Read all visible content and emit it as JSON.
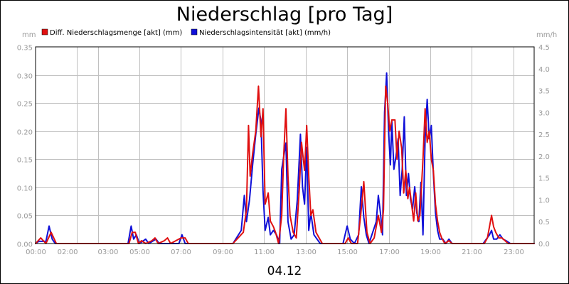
{
  "chart_data": {
    "type": "line",
    "title": "Niederschlag [pro Tag]",
    "date_label": "04.12",
    "left_unit": "mm",
    "right_unit": "mm/h",
    "left_axis": {
      "min": 0,
      "max": 0.35,
      "ticks": [
        "0.00",
        "0.05",
        "0.10",
        "0.15",
        "0.20",
        "0.25",
        "0.30",
        "0.35"
      ]
    },
    "right_axis": {
      "min": 0,
      "max": 4.5,
      "ticks": [
        "0.0",
        "0.5",
        "1.0",
        "1.5",
        "2.0",
        "2.5",
        "3.0",
        "3.5",
        "4.0",
        "4.5"
      ]
    },
    "x_axis": {
      "min_hour": 0,
      "max_hour": 24,
      "tick_hours": [
        0,
        2,
        3,
        5,
        7,
        9,
        11,
        13,
        15,
        17,
        19,
        21,
        23
      ],
      "tick_labels": [
        "00:00",
        "02:00",
        "03:00",
        "05:00",
        "07:00",
        "09:00",
        "11:00",
        "13:00",
        "15:00",
        "17:00",
        "19:00",
        "21:00",
        "23:00"
      ]
    },
    "grid": true,
    "legend_position": "top-left",
    "series": [
      {
        "name": "Diff. Niederschlagsmenge [akt] (mm)",
        "axis": "left",
        "color": "#e01010",
        "points": [
          [
            0,
            0
          ],
          [
            0.25,
            0.01
          ],
          [
            0.5,
            0
          ],
          [
            0.75,
            0.02
          ],
          [
            1.0,
            0
          ],
          [
            1.5,
            0
          ],
          [
            4.5,
            0
          ],
          [
            4.65,
            0.02
          ],
          [
            4.8,
            0.02
          ],
          [
            4.95,
            0
          ],
          [
            5.1,
            0.005
          ],
          [
            5.3,
            0
          ],
          [
            5.6,
            0.005
          ],
          [
            5.75,
            0.01
          ],
          [
            5.9,
            0
          ],
          [
            6.2,
            0.005
          ],
          [
            6.35,
            0.01
          ],
          [
            6.5,
            0
          ],
          [
            7.0,
            0.01
          ],
          [
            7.2,
            0.01
          ],
          [
            7.35,
            0
          ],
          [
            9.5,
            0
          ],
          [
            10.0,
            0.02
          ],
          [
            10.15,
            0.06
          ],
          [
            10.25,
            0.21
          ],
          [
            10.33,
            0.12
          ],
          [
            10.45,
            0.16
          ],
          [
            10.6,
            0.2
          ],
          [
            10.73,
            0.28
          ],
          [
            10.85,
            0.19
          ],
          [
            10.95,
            0.24
          ],
          [
            11.05,
            0.07
          ],
          [
            11.2,
            0.09
          ],
          [
            11.3,
            0.04
          ],
          [
            11.45,
            0.03
          ],
          [
            11.55,
            0.02
          ],
          [
            11.7,
            0
          ],
          [
            11.85,
            0.05
          ],
          [
            11.95,
            0.16
          ],
          [
            12.05,
            0.24
          ],
          [
            12.15,
            0.12
          ],
          [
            12.25,
            0.05
          ],
          [
            12.4,
            0.02
          ],
          [
            12.55,
            0.01
          ],
          [
            12.7,
            0.1
          ],
          [
            12.8,
            0.18
          ],
          [
            12.95,
            0.13
          ],
          [
            13.05,
            0.21
          ],
          [
            13.15,
            0.12
          ],
          [
            13.25,
            0.05
          ],
          [
            13.35,
            0.06
          ],
          [
            13.5,
            0.02
          ],
          [
            13.65,
            0.01
          ],
          [
            13.8,
            0
          ],
          [
            14.9,
            0
          ],
          [
            15.05,
            0.01
          ],
          [
            15.2,
            0
          ],
          [
            15.5,
            0
          ],
          [
            15.65,
            0.05
          ],
          [
            15.8,
            0.11
          ],
          [
            15.95,
            0.02
          ],
          [
            16.1,
            0
          ],
          [
            16.3,
            0.01
          ],
          [
            16.5,
            0.05
          ],
          [
            16.65,
            0.02
          ],
          [
            16.75,
            0.06
          ],
          [
            16.85,
            0.28
          ],
          [
            16.95,
            0.25
          ],
          [
            17.05,
            0.2
          ],
          [
            17.15,
            0.22
          ],
          [
            17.3,
            0.22
          ],
          [
            17.4,
            0.15
          ],
          [
            17.5,
            0.2
          ],
          [
            17.62,
            0.17
          ],
          [
            17.72,
            0.09
          ],
          [
            17.82,
            0.13
          ],
          [
            17.92,
            0.08
          ],
          [
            18.0,
            0.1
          ],
          [
            18.1,
            0.07
          ],
          [
            18.2,
            0.04
          ],
          [
            18.3,
            0.09
          ],
          [
            18.4,
            0.04
          ],
          [
            18.5,
            0.05
          ],
          [
            18.65,
            0.15
          ],
          [
            18.75,
            0.24
          ],
          [
            18.85,
            0.18
          ],
          [
            18.95,
            0.2
          ],
          [
            19.05,
            0.15
          ],
          [
            19.15,
            0.13
          ],
          [
            19.25,
            0.07
          ],
          [
            19.35,
            0.04
          ],
          [
            19.45,
            0.02
          ],
          [
            19.55,
            0.01
          ],
          [
            19.7,
            0
          ],
          [
            19.9,
            0.005
          ],
          [
            20.05,
            0
          ],
          [
            20.3,
            0
          ],
          [
            21.6,
            0
          ],
          [
            21.75,
            0.01
          ],
          [
            21.85,
            0.03
          ],
          [
            21.95,
            0.05
          ],
          [
            22.05,
            0.03
          ],
          [
            22.15,
            0.02
          ],
          [
            22.3,
            0.01
          ],
          [
            22.45,
            0.01
          ],
          [
            22.6,
            0.005
          ],
          [
            22.75,
            0
          ],
          [
            24.0,
            0
          ]
        ]
      },
      {
        "name": "Niederschlagsintensität [akt] (mm/h)",
        "axis": "right",
        "color": "#1010d8",
        "points": [
          [
            0,
            0
          ],
          [
            0.15,
            0.05
          ],
          [
            0.35,
            0.05
          ],
          [
            0.5,
            0.05
          ],
          [
            0.65,
            0.4
          ],
          [
            0.8,
            0.1
          ],
          [
            0.95,
            0
          ],
          [
            1.2,
            0
          ],
          [
            4.45,
            0
          ],
          [
            4.6,
            0.4
          ],
          [
            4.72,
            0.1
          ],
          [
            4.85,
            0.2
          ],
          [
            5.0,
            0
          ],
          [
            5.3,
            0.1
          ],
          [
            5.45,
            0
          ],
          [
            5.8,
            0.1
          ],
          [
            5.95,
            0
          ],
          [
            6.9,
            0
          ],
          [
            7.05,
            0.2
          ],
          [
            7.2,
            0
          ],
          [
            9.5,
            0
          ],
          [
            9.9,
            0.3
          ],
          [
            10.05,
            1.1
          ],
          [
            10.15,
            0.5
          ],
          [
            10.3,
            1.0
          ],
          [
            10.45,
            1.8
          ],
          [
            10.6,
            2.5
          ],
          [
            10.75,
            3.1
          ],
          [
            10.85,
            2.8
          ],
          [
            10.95,
            1.2
          ],
          [
            11.05,
            0.3
          ],
          [
            11.2,
            0.6
          ],
          [
            11.3,
            0.2
          ],
          [
            11.45,
            0.3
          ],
          [
            11.6,
            0.2
          ],
          [
            11.75,
            0
          ],
          [
            11.85,
            1.7
          ],
          [
            11.95,
            2.0
          ],
          [
            12.05,
            2.3
          ],
          [
            12.15,
            0.5
          ],
          [
            12.3,
            0.1
          ],
          [
            12.45,
            0.2
          ],
          [
            12.6,
            1.0
          ],
          [
            12.75,
            2.5
          ],
          [
            12.85,
            1.3
          ],
          [
            12.95,
            0.9
          ],
          [
            13.05,
            2.2
          ],
          [
            13.15,
            0.3
          ],
          [
            13.25,
            0.7
          ],
          [
            13.4,
            0.2
          ],
          [
            13.55,
            0.1
          ],
          [
            13.7,
            0
          ],
          [
            14.8,
            0
          ],
          [
            15.0,
            0.4
          ],
          [
            15.15,
            0.1
          ],
          [
            15.35,
            0
          ],
          [
            15.55,
            0.2
          ],
          [
            15.68,
            1.3
          ],
          [
            15.8,
            0.6
          ],
          [
            15.92,
            0.2
          ],
          [
            16.05,
            0
          ],
          [
            16.4,
            0.5
          ],
          [
            16.5,
            1.1
          ],
          [
            16.6,
            0.7
          ],
          [
            16.7,
            0.2
          ],
          [
            16.8,
            3.0
          ],
          [
            16.9,
            3.9
          ],
          [
            17.0,
            2.5
          ],
          [
            17.08,
            1.8
          ],
          [
            17.15,
            2.8
          ],
          [
            17.25,
            1.7
          ],
          [
            17.35,
            2.0
          ],
          [
            17.45,
            2.4
          ],
          [
            17.55,
            1.1
          ],
          [
            17.65,
            1.7
          ],
          [
            17.75,
            2.9
          ],
          [
            17.85,
            1.1
          ],
          [
            17.95,
            1.6
          ],
          [
            18.05,
            1.0
          ],
          [
            18.15,
            0.8
          ],
          [
            18.25,
            1.3
          ],
          [
            18.35,
            0.7
          ],
          [
            18.45,
            0.5
          ],
          [
            18.55,
            1.4
          ],
          [
            18.65,
            0.2
          ],
          [
            18.75,
            2.4
          ],
          [
            18.85,
            3.3
          ],
          [
            18.95,
            2.4
          ],
          [
            19.05,
            2.7
          ],
          [
            19.15,
            1.6
          ],
          [
            19.25,
            0.7
          ],
          [
            19.35,
            0.3
          ],
          [
            19.45,
            0.1
          ],
          [
            19.6,
            0.1
          ],
          [
            19.75,
            0
          ],
          [
            19.9,
            0.1
          ],
          [
            20.05,
            0
          ],
          [
            21.55,
            0
          ],
          [
            21.7,
            0.1
          ],
          [
            21.85,
            0.2
          ],
          [
            21.95,
            0.3
          ],
          [
            22.05,
            0.1
          ],
          [
            22.2,
            0.1
          ],
          [
            22.35,
            0.2
          ],
          [
            22.5,
            0.1
          ],
          [
            22.7,
            0.05
          ],
          [
            22.85,
            0
          ],
          [
            24.0,
            0
          ]
        ]
      }
    ]
  }
}
